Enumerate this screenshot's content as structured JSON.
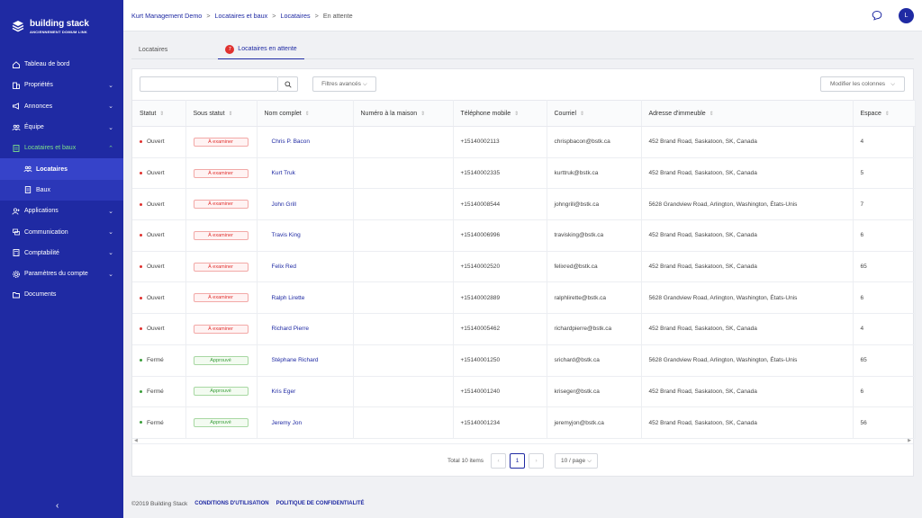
{
  "brand": {
    "name": "building stack",
    "tagline": "ANCIENNEMENT DOMUM LINK"
  },
  "sidebar": {
    "items": [
      {
        "label": "Tableau de bord",
        "icon": "home-icon",
        "chevron": false
      },
      {
        "label": "Propriétés",
        "icon": "building-icon",
        "chevron": true
      },
      {
        "label": "Annonces",
        "icon": "megaphone-icon",
        "chevron": true
      },
      {
        "label": "Équipe",
        "icon": "team-icon",
        "chevron": true
      },
      {
        "label": "Locataires et baux",
        "icon": "document-icon",
        "chevron": true,
        "active": true
      },
      {
        "label": "Locataires",
        "icon": "users-icon",
        "sub": true,
        "current": true
      },
      {
        "label": "Baux",
        "icon": "file-icon",
        "sub": true
      },
      {
        "label": "Applications",
        "icon": "user-add-icon",
        "chevron": true
      },
      {
        "label": "Communication",
        "icon": "chat-icon",
        "chevron": true
      },
      {
        "label": "Comptabilité",
        "icon": "calculator-icon",
        "chevron": true
      },
      {
        "label": "Paramètres du compte",
        "icon": "gear-icon",
        "chevron": true
      },
      {
        "label": "Documents",
        "icon": "folder-icon",
        "chevron": false
      }
    ],
    "collapse": "‹"
  },
  "breadcrumb": {
    "items": [
      "Kurt Management Demo",
      "Locataires et baux",
      "Locataires"
    ],
    "current": "En attente",
    "sep": ">"
  },
  "header": {
    "avatar_initial": "L"
  },
  "tabs": [
    {
      "label": "Locataires"
    },
    {
      "label": "Locataires en attente",
      "count": "7"
    }
  ],
  "toolbar": {
    "search_placeholder": "",
    "filters_label": "Filtres avancés",
    "columns_label": "Modifier les colonnes"
  },
  "table": {
    "columns": [
      "Statut",
      "Sous statut",
      "Nom complet",
      "Numéro à la maison",
      "Téléphone mobile",
      "Courriel",
      "Adresse d'immeuble",
      "Espace"
    ],
    "rows": [
      {
        "status": "Ouvert",
        "sub": "À examiner",
        "name": "Chris P. Bacon",
        "home": "",
        "mobile": "+15140002113",
        "email": "chrispbacon@bstk.ca",
        "address": "452 Brand Road, Saskatoon, SK, Canada",
        "space": "4"
      },
      {
        "status": "Ouvert",
        "sub": "À examiner",
        "name": "Kurt Truk",
        "home": "",
        "mobile": "+15140002335",
        "email": "kurttruk@bstk.ca",
        "address": "452 Brand Road, Saskatoon, SK, Canada",
        "space": "5"
      },
      {
        "status": "Ouvert",
        "sub": "À examiner",
        "name": "John Grill",
        "home": "",
        "mobile": "+15140008544",
        "email": "johngrill@bstk.ca",
        "address": "5628 Grandview Road, Arlington, Washington, États-Unis",
        "space": "7"
      },
      {
        "status": "Ouvert",
        "sub": "À examiner",
        "name": "Travis King",
        "home": "",
        "mobile": "+15140006996",
        "email": "travisking@bstk.ca",
        "address": "452 Brand Road, Saskatoon, SK, Canada",
        "space": "6"
      },
      {
        "status": "Ouvert",
        "sub": "À examiner",
        "name": "Felix Red",
        "home": "",
        "mobile": "+15140002520",
        "email": "felixred@bstk.ca",
        "address": "452 Brand Road, Saskatoon, SK, Canada",
        "space": "65"
      },
      {
        "status": "Ouvert",
        "sub": "À examiner",
        "name": "Ralph Lirette",
        "home": "",
        "mobile": "+15140002889",
        "email": "ralphlirette@bstk.ca",
        "address": "5628 Grandview Road, Arlington, Washington, États-Unis",
        "space": "6"
      },
      {
        "status": "Ouvert",
        "sub": "À examiner",
        "name": "Richard Pierre",
        "home": "",
        "mobile": "+15140005462",
        "email": "richardpierre@bstk.ca",
        "address": "452 Brand Road, Saskatoon, SK, Canada",
        "space": "4"
      },
      {
        "status": "Fermé",
        "sub": "Approuvé",
        "name": "Stéphane Richard",
        "home": "",
        "mobile": "+15140001250",
        "email": "srichard@bstk.ca",
        "address": "5628 Grandview Road, Arlington, Washington, États-Unis",
        "space": "65"
      },
      {
        "status": "Fermé",
        "sub": "Approuvé",
        "name": "Kris Eger",
        "home": "",
        "mobile": "+15140001240",
        "email": "kriseger@bstk.ca",
        "address": "452 Brand Road, Saskatoon, SK, Canada",
        "space": "6"
      },
      {
        "status": "Fermé",
        "sub": "Approuvé",
        "name": "Jeremy Jon",
        "home": "",
        "mobile": "+15140001234",
        "email": "jeremyjon@bstk.ca",
        "address": "452 Brand Road, Saskatoon, SK, Canada",
        "space": "56"
      }
    ]
  },
  "pagination": {
    "total": "Total 10 items",
    "page": "1",
    "page_size": "10 / page"
  },
  "footer": {
    "copyright": "©2019 Building Stack",
    "terms": "CONDITIONS D'UTILISATION",
    "privacy": "POLITIQUE DE CONFIDENTIALITÉ"
  },
  "colors": {
    "primary": "#1f2aa3",
    "open": "#e0312f",
    "closed": "#3a9e3a",
    "active_nav": "#7ee08a"
  }
}
